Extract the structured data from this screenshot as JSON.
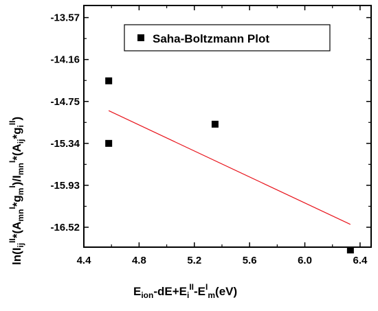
{
  "chart_data": {
    "type": "scatter",
    "title": "",
    "legend": {
      "label": "Saha-Boltzmann Plot",
      "placement": "top-right"
    },
    "x_ticks": [
      "4.4",
      "4.8",
      "5.2",
      "5.6",
      "6.0",
      "6.4"
    ],
    "y_ticks": [
      "-13.57",
      "-14.16",
      "-14.75",
      "-15.34",
      "-15.93",
      "-16.52"
    ],
    "xlim": [
      4.4,
      6.48
    ],
    "ylim": [
      -16.8,
      -13.4
    ],
    "x_tick_values": [
      4.4,
      4.8,
      5.2,
      5.6,
      6.0,
      6.4
    ],
    "y_tick_values": [
      -13.57,
      -14.16,
      -14.75,
      -15.34,
      -15.93,
      -16.52
    ],
    "points": [
      {
        "x": 4.58,
        "y": -14.46
      },
      {
        "x": 4.58,
        "y": -15.34
      },
      {
        "x": 5.35,
        "y": -15.07
      },
      {
        "x": 6.33,
        "y": -16.84
      }
    ],
    "fit_line": {
      "x": [
        4.58,
        6.33
      ],
      "y": [
        -14.88,
        -16.48
      ],
      "color": "#e8141c"
    },
    "marker_color": "#000000",
    "xlabel": {
      "p1": "E",
      "p2": "ion",
      "p3": "-dE+E",
      "p4": "i",
      "p5": "II",
      "p6": "-E",
      "p7": "I",
      "p8": "m",
      "p9": "(eV)"
    },
    "ylabel": {
      "p1": "ln(I",
      "p2": "ij",
      "p3": "II",
      "p4": "*(A",
      "p5": "mn",
      "p6": "I",
      "p7": "*g",
      "p8": "m",
      "p9": "I",
      "p10": ")/I",
      "p11": "mn",
      "p12": "I",
      "p13": "*(A",
      "p14": "ij",
      "p15": "*g",
      "p16": "i",
      "p17": "II",
      "p18": ")"
    }
  }
}
